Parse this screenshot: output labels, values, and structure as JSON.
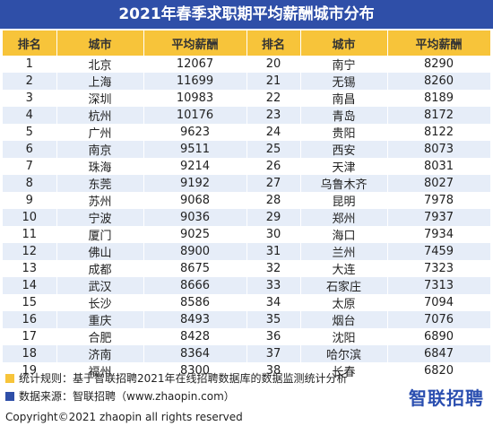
{
  "title": "2021年春季求职期平均薪酬城市分布",
  "headers": {
    "rank": "排名",
    "city": "城市",
    "salary": "平均薪酬"
  },
  "left": [
    {
      "rank": "1",
      "city": "北京",
      "salary": "12067"
    },
    {
      "rank": "2",
      "city": "上海",
      "salary": "11699"
    },
    {
      "rank": "3",
      "city": "深圳",
      "salary": "10983"
    },
    {
      "rank": "4",
      "city": "杭州",
      "salary": "10176"
    },
    {
      "rank": "5",
      "city": "广州",
      "salary": "9623"
    },
    {
      "rank": "6",
      "city": "南京",
      "salary": "9511"
    },
    {
      "rank": "7",
      "city": "珠海",
      "salary": "9214"
    },
    {
      "rank": "8",
      "city": "东莞",
      "salary": "9192"
    },
    {
      "rank": "9",
      "city": "苏州",
      "salary": "9068"
    },
    {
      "rank": "10",
      "city": "宁波",
      "salary": "9036"
    },
    {
      "rank": "11",
      "city": "厦门",
      "salary": "9025"
    },
    {
      "rank": "12",
      "city": "佛山",
      "salary": "8900"
    },
    {
      "rank": "13",
      "city": "成都",
      "salary": "8675"
    },
    {
      "rank": "14",
      "city": "武汉",
      "salary": "8666"
    },
    {
      "rank": "15",
      "city": "长沙",
      "salary": "8586"
    },
    {
      "rank": "16",
      "city": "重庆",
      "salary": "8493"
    },
    {
      "rank": "17",
      "city": "合肥",
      "salary": "8428"
    },
    {
      "rank": "18",
      "city": "济南",
      "salary": "8364"
    },
    {
      "rank": "19",
      "city": "福州",
      "salary": "8300"
    }
  ],
  "right": [
    {
      "rank": "20",
      "city": "南宁",
      "salary": "8290"
    },
    {
      "rank": "21",
      "city": "无锡",
      "salary": "8260"
    },
    {
      "rank": "22",
      "city": "南昌",
      "salary": "8189"
    },
    {
      "rank": "23",
      "city": "青岛",
      "salary": "8172"
    },
    {
      "rank": "24",
      "city": "贵阳",
      "salary": "8122"
    },
    {
      "rank": "25",
      "city": "西安",
      "salary": "8073"
    },
    {
      "rank": "26",
      "city": "天津",
      "salary": "8031"
    },
    {
      "rank": "27",
      "city": "乌鲁木齐",
      "salary": "8027"
    },
    {
      "rank": "28",
      "city": "昆明",
      "salary": "7978"
    },
    {
      "rank": "29",
      "city": "郑州",
      "salary": "7937"
    },
    {
      "rank": "30",
      "city": "海口",
      "salary": "7934"
    },
    {
      "rank": "31",
      "city": "兰州",
      "salary": "7459"
    },
    {
      "rank": "32",
      "city": "大连",
      "salary": "7323"
    },
    {
      "rank": "33",
      "city": "石家庄",
      "salary": "7313"
    },
    {
      "rank": "34",
      "city": "太原",
      "salary": "7094"
    },
    {
      "rank": "35",
      "city": "烟台",
      "salary": "7076"
    },
    {
      "rank": "36",
      "city": "沈阳",
      "salary": "6890"
    },
    {
      "rank": "37",
      "city": "哈尔滨",
      "salary": "6847"
    },
    {
      "rank": "38",
      "city": "长春",
      "salary": "6820"
    }
  ],
  "legend": {
    "rule": "统计规则：基于智联招聘2021年在线招聘数据库的数据监测统计分析",
    "source": "数据来源：智联招聘（www.zhaopin.com）",
    "rule_color": "#f7c43a",
    "source_color": "#2f4fa8"
  },
  "logo": "智联招聘",
  "copyright": "Copyright©2021 zhaopin all rights reserved"
}
